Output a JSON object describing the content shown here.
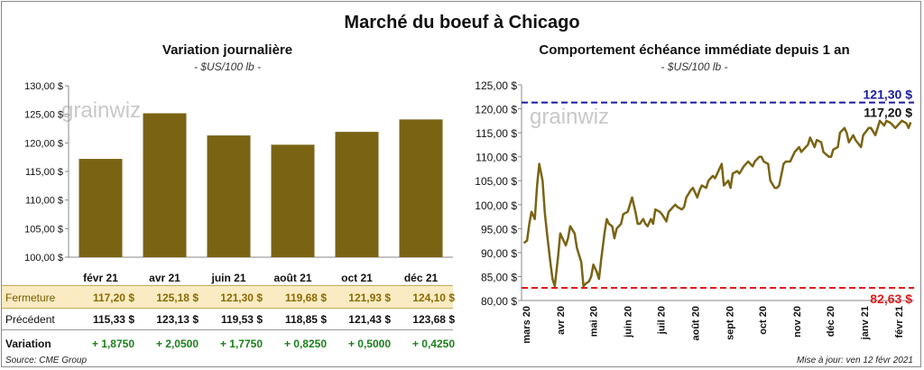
{
  "header": {
    "title": "Marché du boeuf à Chicago"
  },
  "left_chart": {
    "title": "Variation  journalière",
    "unit": "- $US/100 lb -",
    "watermark": "grainwiz",
    "y_ticks": [
      "130,00 $",
      "125,00 $",
      "120,00 $",
      "115,00 $",
      "110,00 $",
      "105,00 $",
      "100,00 $"
    ]
  },
  "right_chart": {
    "title": "Comportement  échéance immédiate depuis 1 an",
    "unit": "- $US/100 lb -",
    "watermark": "grainwiz",
    "y_ticks": [
      "125,00 $",
      "120,00 $",
      "115,00 $",
      "110,00 $",
      "105,00 $",
      "100,00 $",
      "95,00 $",
      "90,00 $",
      "85,00 $",
      "80,00 $"
    ],
    "high_label": "121,30 $",
    "low_label": "82,63 $",
    "last_label": "117,20 $"
  },
  "table": {
    "rows": [
      {
        "label": "Fermeture",
        "values": [
          "117,20  $",
          "125,18  $",
          "121,30  $",
          "119,68  $",
          "121,93  $",
          "124,10  $"
        ]
      },
      {
        "label": "Précédent",
        "values": [
          "115,33  $",
          "123,13  $",
          "119,53  $",
          "118,85  $",
          "121,43  $",
          "123,68  $"
        ]
      },
      {
        "label": "Variation",
        "values": [
          "+ 1,8750",
          "+ 2,0500",
          "+ 1,7750",
          "+ 0,8250",
          "+ 0,5000",
          "+ 0,4250"
        ]
      }
    ]
  },
  "footer": {
    "source": "Source: CME Group",
    "updated": "Mise à jour: ven 12 févr 2021"
  },
  "colors": {
    "bar": "#7a6414",
    "line": "#7a6414",
    "high_line": "#1a1aa0",
    "low_line": "#e01b1b"
  },
  "chart_data": [
    {
      "type": "bar",
      "title": "Variation  journalière",
      "categories": [
        "févr 21",
        "avr 21",
        "juin 21",
        "août 21",
        "oct 21",
        "déc 21"
      ],
      "values": [
        117.2,
        125.18,
        121.3,
        119.68,
        121.93,
        124.1
      ],
      "ylim": [
        100,
        130
      ],
      "grid": false
    },
    {
      "type": "line",
      "title": "Comportement  échéance immédiate depuis 1 an",
      "x_labels": [
        "mars 20",
        "avr 20",
        "mai 20",
        "juin 20",
        "juil 20",
        "août 20",
        "sept 20",
        "oct 20",
        "nov 20",
        "déc 20",
        "janv 21",
        "févr 21"
      ],
      "ylim": [
        80,
        125
      ],
      "grid": false,
      "reference_lines": [
        {
          "label": "121,30 $",
          "value": 121.3
        },
        {
          "label": "82,63 $",
          "value": 82.63
        }
      ],
      "x": [
        "2020-02-28",
        "2020-03-02",
        "2020-03-04",
        "2020-03-06",
        "2020-03-09",
        "2020-03-11",
        "2020-03-13",
        "2020-03-16",
        "2020-03-18",
        "2020-03-20",
        "2020-03-23",
        "2020-03-25",
        "2020-03-27",
        "2020-03-30",
        "2020-04-01",
        "2020-04-03",
        "2020-04-06",
        "2020-04-08",
        "2020-04-10",
        "2020-04-14",
        "2020-04-16",
        "2020-04-20",
        "2020-04-22",
        "2020-04-24",
        "2020-04-27",
        "2020-04-29",
        "2020-05-01",
        "2020-05-04",
        "2020-05-06",
        "2020-05-08",
        "2020-05-11",
        "2020-05-13",
        "2020-05-15",
        "2020-05-18",
        "2020-05-20",
        "2020-05-22",
        "2020-05-26",
        "2020-05-28",
        "2020-06-01",
        "2020-06-03",
        "2020-06-05",
        "2020-06-08",
        "2020-06-10",
        "2020-06-12",
        "2020-06-15",
        "2020-06-17",
        "2020-06-19",
        "2020-06-22",
        "2020-06-24",
        "2020-06-26",
        "2020-06-30",
        "2020-07-02",
        "2020-07-06",
        "2020-07-08",
        "2020-07-10",
        "2020-07-14",
        "2020-07-16",
        "2020-07-20",
        "2020-07-22",
        "2020-07-24",
        "2020-07-28",
        "2020-07-30",
        "2020-08-03",
        "2020-08-05",
        "2020-08-07",
        "2020-08-11",
        "2020-08-13",
        "2020-08-17",
        "2020-08-19",
        "2020-08-21",
        "2020-08-25",
        "2020-08-27",
        "2020-08-31",
        "2020-09-02",
        "2020-09-04",
        "2020-09-08",
        "2020-09-10",
        "2020-09-14",
        "2020-09-16",
        "2020-09-18",
        "2020-09-22",
        "2020-09-24",
        "2020-09-28",
        "2020-09-30",
        "2020-10-02",
        "2020-10-06",
        "2020-10-08",
        "2020-10-12",
        "2020-10-14",
        "2020-10-16",
        "2020-10-20",
        "2020-10-22",
        "2020-10-26",
        "2020-10-28",
        "2020-10-30",
        "2020-11-03",
        "2020-11-05",
        "2020-11-09",
        "2020-11-11",
        "2020-11-13",
        "2020-11-17",
        "2020-11-19",
        "2020-11-23",
        "2020-11-25",
        "2020-11-30",
        "2020-12-02",
        "2020-12-04",
        "2020-12-08",
        "2020-12-10",
        "2020-12-14",
        "2020-12-16",
        "2020-12-18",
        "2020-12-22",
        "2020-12-24",
        "2020-12-29",
        "2020-12-31",
        "2021-01-05",
        "2021-01-07",
        "2021-01-11",
        "2021-01-13",
        "2021-01-15",
        "2021-01-19",
        "2021-01-21",
        "2021-01-25",
        "2021-01-27",
        "2021-01-29",
        "2021-02-02",
        "2021-02-04",
        "2021-02-08",
        "2021-02-10",
        "2021-02-12"
      ],
      "y": [
        92,
        92.5,
        96,
        98.5,
        97,
        104,
        108.5,
        105,
        98.5,
        94,
        88,
        84.5,
        83,
        89,
        94,
        93,
        91.5,
        93,
        95.5,
        94,
        91,
        88,
        83,
        83.5,
        84,
        85,
        87.5,
        86,
        84.5,
        88.5,
        94,
        97,
        96,
        95.5,
        93,
        95,
        96,
        98,
        98.5,
        100,
        101.5,
        98.5,
        96,
        96,
        97,
        96,
        95.5,
        97,
        96,
        99,
        98.5,
        98,
        96.5,
        98.5,
        99,
        100,
        99.5,
        99,
        99.5,
        101.5,
        103,
        103.5,
        101.5,
        103,
        104,
        103.5,
        105,
        106,
        105.5,
        106.5,
        108.5,
        104,
        105,
        103.5,
        106.5,
        107,
        106.5,
        108,
        108.5,
        109,
        108,
        109,
        110,
        110,
        109,
        108.5,
        105,
        103.5,
        103.5,
        104,
        108.5,
        109,
        109,
        110,
        111,
        112,
        111,
        112,
        112.5,
        114,
        112,
        113.5,
        113,
        111,
        110,
        110,
        111.5,
        112,
        115,
        116,
        115,
        113,
        114.5,
        113.5,
        112,
        114.5,
        116,
        116,
        114.5,
        116,
        117.5,
        116.5,
        117.5,
        117,
        116.5,
        116,
        117,
        117.5,
        117,
        116,
        117.2
      ]
    }
  ]
}
